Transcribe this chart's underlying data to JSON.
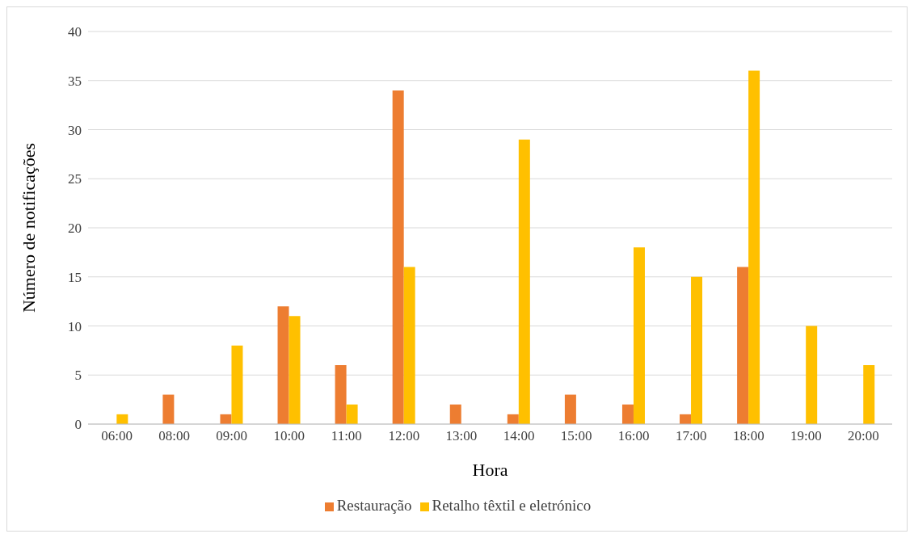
{
  "chart_data": {
    "type": "bar",
    "xlabel": "Hora",
    "ylabel": "Número de notificações",
    "categories": [
      "06:00",
      "08:00",
      "09:00",
      "10:00",
      "11:00",
      "12:00",
      "13:00",
      "14:00",
      "15:00",
      "16:00",
      "17:00",
      "18:00",
      "19:00",
      "20:00"
    ],
    "series": [
      {
        "name": "Restauração",
        "color": "#ed7d31",
        "values": [
          0,
          3,
          1,
          12,
          6,
          34,
          2,
          1,
          3,
          2,
          1,
          16,
          0,
          0
        ]
      },
      {
        "name": "Retalho têxtil e eletrónico",
        "color": "#ffc000",
        "values": [
          1,
          0,
          8,
          11,
          2,
          16,
          0,
          29,
          0,
          18,
          15,
          36,
          10,
          6
        ]
      }
    ],
    "ylim": [
      0,
      40
    ],
    "yticks": [
      0,
      5,
      10,
      15,
      20,
      25,
      30,
      35,
      40
    ],
    "grid": "y",
    "legend": "bottom"
  }
}
